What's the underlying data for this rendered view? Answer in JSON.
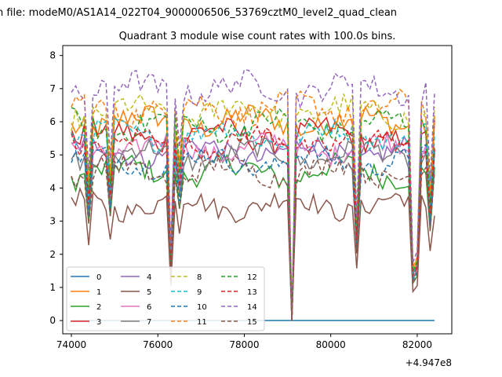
{
  "figure": {
    "suptitle": "n file: modeM0/AS1A14_022T04_9000006506_53769cztM0_level2_quad_clean",
    "title": "Quadrant 3 module wise count rates with 100.0s bins.",
    "offset_label": "+4.947e8"
  },
  "chart_data": {
    "type": "line",
    "title": "Quadrant 3 module wise count rates with 100.0s bins.",
    "xlabel": "",
    "ylabel": "",
    "x_offset": 494700000,
    "xlim": [
      73800,
      82800
    ],
    "ylim": [
      -0.4,
      8.3
    ],
    "xticks": [
      74000,
      76000,
      78000,
      80000,
      82000
    ],
    "xtick_labels": [
      "74000",
      "76000",
      "78000",
      "80000",
      "82000"
    ],
    "yticks": [
      0,
      1,
      2,
      3,
      4,
      5,
      6,
      7,
      8
    ],
    "ytick_labels": [
      "0",
      "1",
      "2",
      "3",
      "4",
      "5",
      "6",
      "7",
      "8"
    ],
    "grid": false,
    "legend_position": "lower-left",
    "series_style_note": "modules 0-7 solid, 8-15 dashed",
    "series": [
      {
        "name": "0",
        "color": "#1f77b4",
        "dash": false,
        "base": 0.0,
        "amp": 0.0
      },
      {
        "name": "1",
        "color": "#ff7f0e",
        "dash": false,
        "base": 6.0,
        "amp": 0.35
      },
      {
        "name": "2",
        "color": "#2ca02c",
        "dash": false,
        "base": 4.5,
        "amp": 0.35
      },
      {
        "name": "3",
        "color": "#d62728",
        "dash": false,
        "base": 5.6,
        "amp": 0.35
      },
      {
        "name": "4",
        "color": "#9467bd",
        "dash": false,
        "base": 5.1,
        "amp": 0.3
      },
      {
        "name": "5",
        "color": "#8c564b",
        "dash": false,
        "base": 3.5,
        "amp": 0.3
      },
      {
        "name": "6",
        "color": "#e377c2",
        "dash": false,
        "base": 5.2,
        "amp": 0.3
      },
      {
        "name": "7",
        "color": "#7f7f7f",
        "dash": false,
        "base": 5.0,
        "amp": 0.3
      },
      {
        "name": "8",
        "color": "#bcbd22",
        "dash": true,
        "base": 6.3,
        "amp": 0.35
      },
      {
        "name": "9",
        "color": "#17becf",
        "dash": true,
        "base": 5.6,
        "amp": 0.3
      },
      {
        "name": "10",
        "color": "#1f77b4",
        "dash": true,
        "base": 4.8,
        "amp": 0.3
      },
      {
        "name": "11",
        "color": "#ff7f0e",
        "dash": true,
        "base": 6.4,
        "amp": 0.35
      },
      {
        "name": "12",
        "color": "#2ca02c",
        "dash": true,
        "base": 5.9,
        "amp": 0.35
      },
      {
        "name": "13",
        "color": "#d62728",
        "dash": true,
        "base": 5.4,
        "amp": 0.3
      },
      {
        "name": "14",
        "color": "#9467bd",
        "dash": true,
        "base": 7.0,
        "amp": 0.35
      },
      {
        "name": "15",
        "color": "#8c564b",
        "dash": true,
        "base": 4.5,
        "amp": 0.3
      }
    ],
    "x_start": 74000,
    "x_step": 100,
    "x_end": 82400,
    "dips": [
      {
        "x": 74400,
        "level": 0.65
      },
      {
        "x": 74900,
        "level": 0.7
      },
      {
        "x": 76300,
        "level": 0.3
      },
      {
        "x": 76500,
        "level": 0.75
      },
      {
        "x": 79100,
        "level": 0.0
      },
      {
        "x": 80600,
        "level": 0.45
      },
      {
        "x": 81900,
        "level": 0.25
      },
      {
        "x": 82000,
        "level": 0.3
      },
      {
        "x": 82300,
        "level": 0.6
      }
    ]
  }
}
